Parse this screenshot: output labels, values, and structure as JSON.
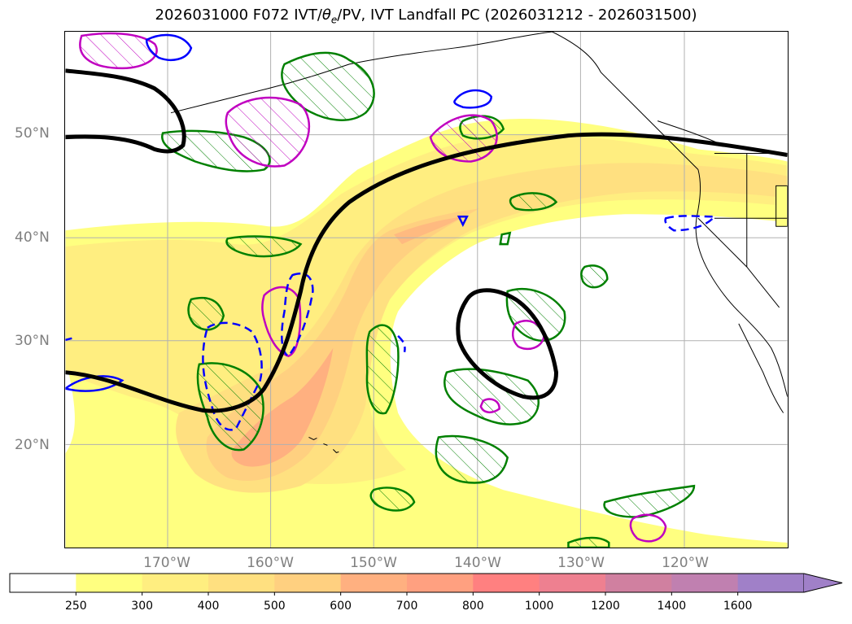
{
  "title": {
    "prefix": "2026031000 F072 IVT/",
    "theta_symbol": "θ",
    "theta_subscript": "e",
    "suffix": "/PV, IVT Landfall PC (2026031212 - 2026031500)"
  },
  "map": {
    "region": "North Pacific / Western North America",
    "lat_labels": [
      "50°N",
      "40°N",
      "30°N",
      "20°N"
    ],
    "lon_labels": [
      "170°W",
      "160°W",
      "150°W",
      "140°W",
      "130°W",
      "120°W"
    ],
    "gridlines": true
  },
  "colorbar": {
    "variable": "IVT",
    "extend": "max",
    "bounds": [
      250,
      300,
      400,
      500,
      600,
      700,
      800,
      1000,
      1200,
      1400,
      1600
    ],
    "labels": [
      "250",
      "300",
      "400",
      "500",
      "600",
      "700",
      "800",
      "1000",
      "1200",
      "1400",
      "1600"
    ],
    "colors": [
      "#ffffff",
      "#ffff80",
      "#ffee80",
      "#ffe080",
      "#ffd080",
      "#ffb080",
      "#ffa080",
      "#ff8080",
      "#ee8090",
      "#d080a0",
      "#c080b0",
      "#a080c8"
    ]
  },
  "contours": {
    "black_line": "PV / theta-e contour",
    "green_hatched": "IVT Landfall PC positive",
    "magenta": "contour",
    "blue_dashed": "contour",
    "blue_solid": "contour"
  },
  "colors": {
    "black_contour": "#000000",
    "green_contour": "#008000",
    "magenta_contour": "#c000c0",
    "blue_contour": "#0000ff",
    "gridline": "#b0b0b0",
    "coastline": "#000000"
  }
}
